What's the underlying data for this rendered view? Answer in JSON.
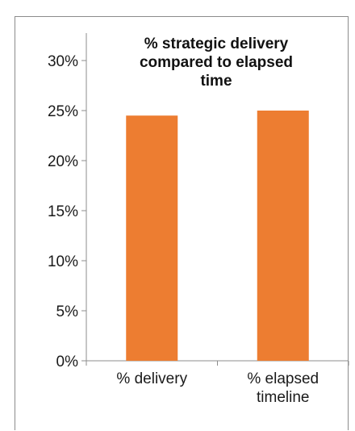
{
  "chart_data": {
    "type": "bar",
    "title_lines": [
      "% strategic delivery",
      "compared to elapsed",
      "time"
    ],
    "categories": [
      [
        "% delivery"
      ],
      [
        "% elapsed",
        "timeline"
      ]
    ],
    "values": [
      24.5,
      25.0
    ],
    "value_unit": "%",
    "ylim": [
      0,
      30
    ],
    "yticks": [
      "0%",
      "5%",
      "10%",
      "15%",
      "20%",
      "25%",
      "30%"
    ],
    "ytick_values": [
      0,
      5,
      10,
      15,
      20,
      25,
      30
    ],
    "grid": false,
    "bar_color": "#ED7D31",
    "axis_color": "#8C8C8C"
  }
}
